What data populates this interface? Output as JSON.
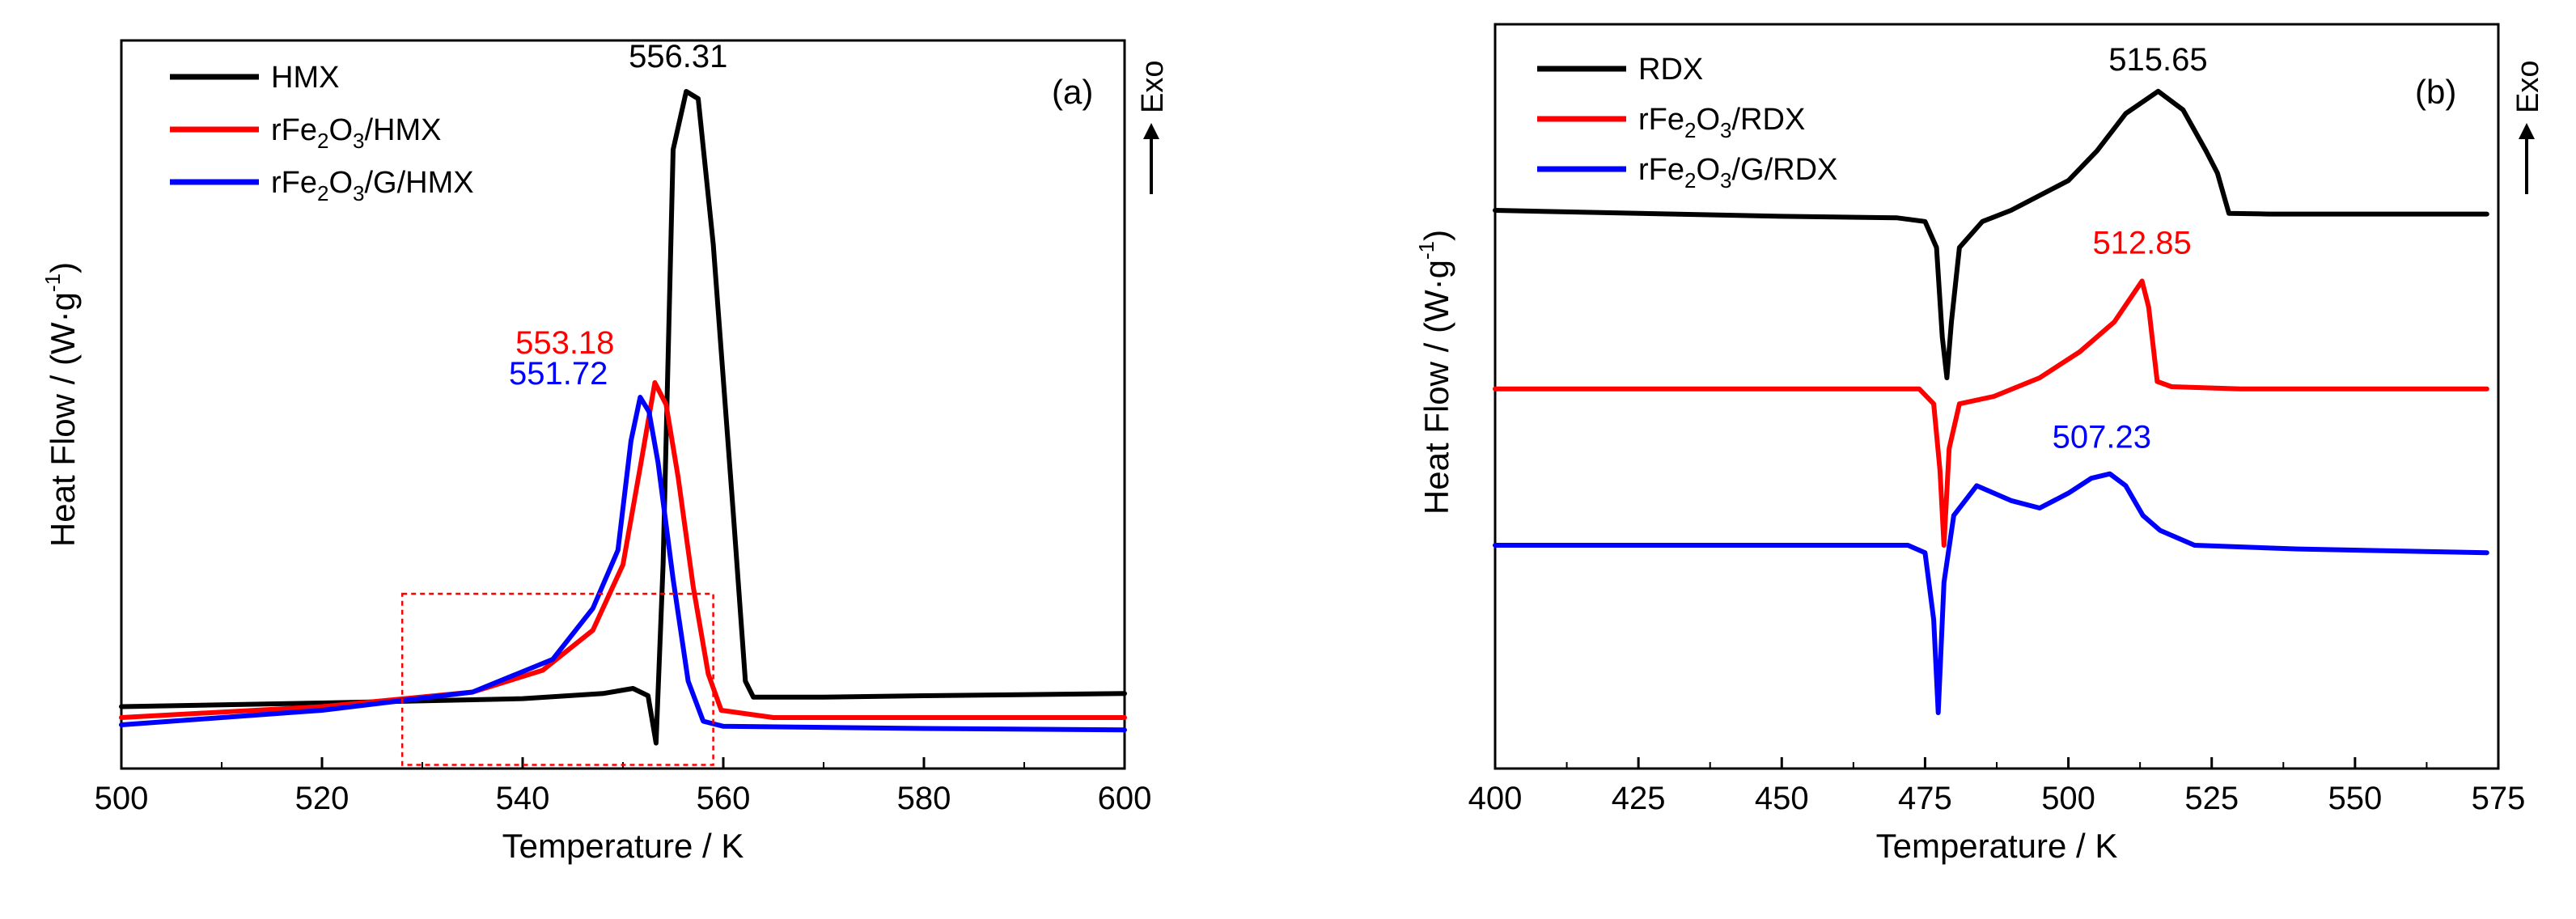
{
  "chart_data": [
    {
      "type": "line",
      "panel": "(a)",
      "xlabel": "Temperature / K",
      "ylabel": "Heat Flow / (W·g",
      "ylabel_sup": "-1",
      "ylabel_close": ")",
      "xlim": [
        500,
        600
      ],
      "ylim": [
        0,
        100
      ],
      "xticks": [
        500,
        520,
        540,
        560,
        580,
        600
      ],
      "exo": "Exo",
      "legend": [
        {
          "prefix": "HMX",
          "sub": "",
          "mid": "",
          "sub2": "",
          "suffix": "",
          "color": "#000000"
        },
        {
          "prefix": "rFe",
          "sub": "2",
          "mid": "O",
          "sub2": "3",
          "suffix": "/HMX",
          "color": "#ff0000"
        },
        {
          "prefix": "rFe",
          "sub": "2",
          "mid": "O",
          "sub2": "3",
          "suffix": "/G/HMX",
          "color": "#0000ff"
        }
      ],
      "series": [
        {
          "name": "HMX",
          "color": "#000000",
          "points": [
            [
              500,
              8.5
            ],
            [
              520,
              9.0
            ],
            [
              540,
              9.6
            ],
            [
              548,
              10.3
            ],
            [
              551,
              11.0
            ],
            [
              552.5,
              10.0
            ],
            [
              553.3,
              3.5
            ],
            [
              554,
              28
            ],
            [
              555,
              85
            ],
            [
              556.31,
              93
            ],
            [
              557.5,
              92
            ],
            [
              559,
              72
            ],
            [
              561,
              35
            ],
            [
              562.2,
              12
            ],
            [
              563,
              9.8
            ],
            [
              570,
              9.8
            ],
            [
              580,
              10.0
            ],
            [
              600,
              10.3
            ]
          ]
        },
        {
          "name": "rFe2O3/HMX",
          "color": "#ff0000",
          "points": [
            [
              500,
              7.0
            ],
            [
              520,
              8.5
            ],
            [
              535,
              10.5
            ],
            [
              542,
              13.5
            ],
            [
              547,
              19
            ],
            [
              550,
              28
            ],
            [
              551.8,
              42
            ],
            [
              553.18,
              53
            ],
            [
              554.3,
              50
            ],
            [
              555.5,
              40
            ],
            [
              557,
              25
            ],
            [
              558.5,
              13
            ],
            [
              559.8,
              8.0
            ],
            [
              565,
              7.0
            ],
            [
              580,
              7.0
            ],
            [
              600,
              7.0
            ]
          ]
        },
        {
          "name": "rFe2O3/G/HMX",
          "color": "#0000ff",
          "points": [
            [
              500,
              6.0
            ],
            [
              520,
              8.0
            ],
            [
              535,
              10.5
            ],
            [
              543,
              15
            ],
            [
              547,
              22
            ],
            [
              549.5,
              30
            ],
            [
              550.8,
              45
            ],
            [
              551.72,
              51
            ],
            [
              552.6,
              49
            ],
            [
              553.5,
              42
            ],
            [
              555,
              26
            ],
            [
              556.5,
              12
            ],
            [
              558,
              6.5
            ],
            [
              560,
              5.8
            ],
            [
              580,
              5.5
            ],
            [
              600,
              5.3
            ]
          ]
        }
      ],
      "annotations": [
        {
          "text": "556.31",
          "color": "#000000",
          "x": 556.31,
          "y": 93
        },
        {
          "text": "553.18",
          "color": "#ff0000",
          "x": 553.18,
          "y": 53
        },
        {
          "text": "551.72",
          "color": "#0000ff",
          "x": 551.72,
          "y": 51
        }
      ],
      "inset_box": {
        "x": [
          528,
          559
        ],
        "y": [
          0.5,
          24
        ]
      }
    },
    {
      "type": "line",
      "panel": "(b)",
      "xlabel": "Temperature / K",
      "ylabel": "Heat Flow / (W·g",
      "ylabel_sup": "-1",
      "ylabel_close": ")",
      "xlim": [
        400,
        575
      ],
      "ylim": [
        0,
        100
      ],
      "xticks": [
        400,
        425,
        450,
        475,
        500,
        525,
        550,
        575
      ],
      "exo": "Exo",
      "legend": [
        {
          "prefix": "RDX",
          "sub": "",
          "mid": "",
          "sub2": "",
          "suffix": "",
          "color": "#000000"
        },
        {
          "prefix": "rFe",
          "sub": "2",
          "mid": "O",
          "sub2": "3",
          "suffix": "/RDX",
          "color": "#ff0000"
        },
        {
          "prefix": "rFe",
          "sub": "2",
          "mid": "O",
          "sub2": "3",
          "suffix": "/G/RDX",
          "color": "#0000ff"
        }
      ],
      "series": [
        {
          "name": "RDX",
          "color": "#000000",
          "points": [
            [
              400,
              75
            ],
            [
              450,
              74.2
            ],
            [
              470,
              74
            ],
            [
              475,
              73.5
            ],
            [
              477,
              70
            ],
            [
              478,
              58
            ],
            [
              478.8,
              52.5
            ],
            [
              479.6,
              60
            ],
            [
              481,
              70
            ],
            [
              485,
              73.5
            ],
            [
              490,
              75
            ],
            [
              500,
              79
            ],
            [
              505,
              83
            ],
            [
              510,
              88
            ],
            [
              515.65,
              91
            ],
            [
              520,
              88.5
            ],
            [
              524,
              83
            ],
            [
              526,
              80
            ],
            [
              528,
              74.6
            ],
            [
              535,
              74.5
            ],
            [
              550,
              74.5
            ],
            [
              573,
              74.5
            ]
          ]
        },
        {
          "name": "rFe2O3/RDX",
          "color": "#ff0000",
          "points": [
            [
              400,
              51
            ],
            [
              450,
              51
            ],
            [
              474,
              51
            ],
            [
              476.5,
              49
            ],
            [
              477.6,
              40
            ],
            [
              478.3,
              30
            ],
            [
              479.2,
              43
            ],
            [
              481,
              49
            ],
            [
              487,
              50
            ],
            [
              495,
              52.5
            ],
            [
              502,
              56
            ],
            [
              508,
              60
            ],
            [
              512.85,
              65.5
            ],
            [
              514,
              62
            ],
            [
              515.5,
              52
            ],
            [
              518,
              51.3
            ],
            [
              530,
              51
            ],
            [
              573,
              51
            ]
          ]
        },
        {
          "name": "rFe2O3/G/RDX",
          "color": "#0000ff",
          "points": [
            [
              400,
              30
            ],
            [
              450,
              30
            ],
            [
              472,
              30
            ],
            [
              475,
              29
            ],
            [
              476.5,
              20
            ],
            [
              477.3,
              7.5
            ],
            [
              478.3,
              25
            ],
            [
              480,
              34
            ],
            [
              484,
              38
            ],
            [
              490,
              36
            ],
            [
              495,
              35
            ],
            [
              500,
              37
            ],
            [
              504,
              39
            ],
            [
              507.23,
              39.6
            ],
            [
              510,
              38
            ],
            [
              513,
              34
            ],
            [
              516,
              32
            ],
            [
              522,
              30
            ],
            [
              540,
              29.5
            ],
            [
              573,
              29
            ]
          ]
        }
      ],
      "annotations": [
        {
          "text": "515.65",
          "color": "#000000",
          "x": 515.65,
          "y": 91
        },
        {
          "text": "512.85",
          "color": "#ff0000",
          "x": 512.85,
          "y": 65.5
        },
        {
          "text": "507.23",
          "color": "#0000ff",
          "x": 507.23,
          "y": 39.6
        }
      ]
    }
  ]
}
